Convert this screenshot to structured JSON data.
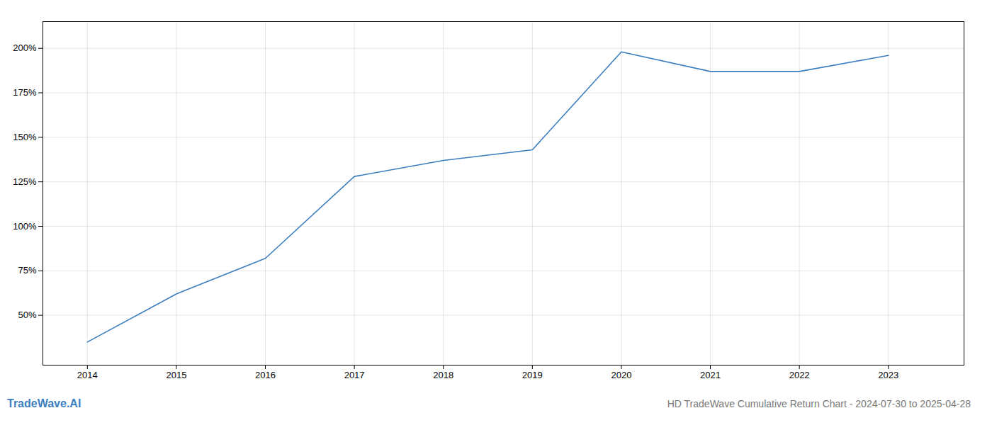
{
  "chart_data": {
    "type": "line",
    "title": "HD TradeWave Cumulative Return Chart - 2024-07-30 to 2025-04-28",
    "annotations": [
      "TradeWave.AI"
    ],
    "x": [
      2014,
      2015,
      2016,
      2017,
      2018,
      2019,
      2020,
      2021,
      2022,
      2023
    ],
    "values": [
      35,
      62,
      82,
      128,
      137,
      143,
      198,
      187,
      187,
      196
    ],
    "color": "#3a7ebf",
    "xlim": [
      2013.5,
      2023.85
    ],
    "xticks": [
      2014,
      2015,
      2016,
      2017,
      2018,
      2019,
      2020,
      2021,
      2022,
      2023
    ],
    "ylim": [
      22,
      215
    ],
    "yticks": [
      {
        "value": 50,
        "label": "50%"
      },
      {
        "value": 75,
        "label": "75%"
      },
      {
        "value": 100,
        "label": "100%"
      },
      {
        "value": 125,
        "label": "125%"
      },
      {
        "value": 150,
        "label": "150%"
      },
      {
        "value": 175,
        "label": "175%"
      },
      {
        "value": 200,
        "label": "200%"
      }
    ],
    "grid": true
  }
}
